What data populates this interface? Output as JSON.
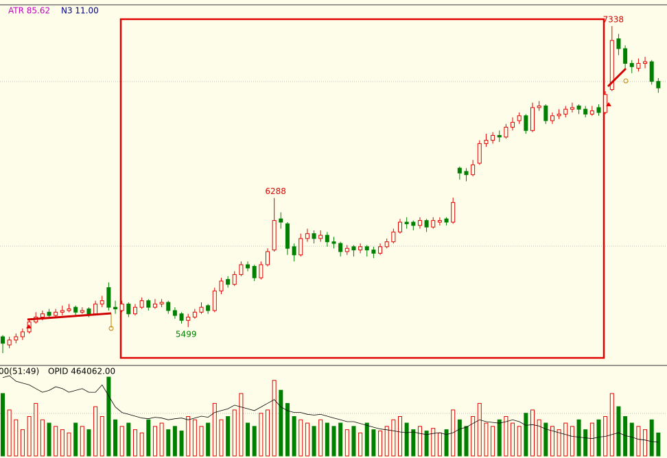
{
  "header": {
    "atr": "ATR 85.62",
    "n3": "N3 11.00"
  },
  "volume_pane": {
    "period": "00(51:49)",
    "opid": "OPID 464062.00"
  },
  "candles": [
    [
      5440,
      5450,
      5340,
      5400
    ],
    [
      5390,
      5440,
      5370,
      5420
    ],
    [
      5420,
      5460,
      5400,
      5440
    ],
    [
      5440,
      5490,
      5420,
      5470
    ],
    [
      5470,
      5550,
      5460,
      5530
    ],
    [
      5530,
      5590,
      5520,
      5560
    ],
    [
      5560,
      5600,
      5540,
      5580
    ],
    [
      5590,
      5610,
      5550,
      5570
    ],
    [
      5570,
      5610,
      5560,
      5590
    ],
    [
      5590,
      5630,
      5570,
      5600
    ],
    [
      5600,
      5640,
      5590,
      5610
    ],
    [
      5620,
      5630,
      5570,
      5590
    ],
    [
      5590,
      5620,
      5580,
      5600
    ],
    [
      5610,
      5620,
      5560,
      5580
    ],
    [
      5580,
      5660,
      5570,
      5640
    ],
    [
      5640,
      5690,
      5620,
      5660
    ],
    [
      5740,
      5772,
      5600,
      5620
    ],
    [
      5620,
      5660,
      5580,
      5610
    ],
    [
      5600,
      5660,
      5590,
      5640
    ],
    [
      5640,
      5650,
      5560,
      5580
    ],
    [
      5580,
      5640,
      5570,
      5620
    ],
    [
      5620,
      5680,
      5610,
      5660
    ],
    [
      5660,
      5670,
      5600,
      5620
    ],
    [
      5620,
      5670,
      5610,
      5640
    ],
    [
      5640,
      5670,
      5620,
      5650
    ],
    [
      5650,
      5660,
      5580,
      5600
    ],
    [
      5600,
      5620,
      5550,
      5570
    ],
    [
      5580,
      5590,
      5520,
      5540
    ],
    [
      5540,
      5580,
      5499,
      5560
    ],
    [
      5560,
      5610,
      5550,
      5590
    ],
    [
      5590,
      5650,
      5580,
      5620
    ],
    [
      5630,
      5640,
      5580,
      5600
    ],
    [
      5600,
      5740,
      5590,
      5720
    ],
    [
      5720,
      5800,
      5700,
      5780
    ],
    [
      5790,
      5810,
      5740,
      5760
    ],
    [
      5760,
      5840,
      5750,
      5820
    ],
    [
      5820,
      5900,
      5810,
      5880
    ],
    [
      5880,
      5900,
      5840,
      5860
    ],
    [
      5870,
      5880,
      5780,
      5800
    ],
    [
      5800,
      5900,
      5790,
      5880
    ],
    [
      5880,
      5980,
      5870,
      5960
    ],
    [
      5970,
      6288,
      5960,
      6150
    ],
    [
      6160,
      6200,
      6100,
      6140
    ],
    [
      6130,
      6140,
      5940,
      5980
    ],
    [
      5990,
      6010,
      5900,
      5940
    ],
    [
      5940,
      6070,
      5930,
      6040
    ],
    [
      6040,
      6100,
      6020,
      6070
    ],
    [
      6070,
      6090,
      6010,
      6040
    ],
    [
      6040,
      6090,
      6020,
      6060
    ],
    [
      6060,
      6080,
      5990,
      6020
    ],
    [
      6020,
      6050,
      5980,
      6010
    ],
    [
      6010,
      6020,
      5930,
      5960
    ],
    [
      5960,
      6000,
      5940,
      5980
    ],
    [
      5990,
      6000,
      5930,
      5970
    ],
    [
      5970,
      6010,
      5950,
      5990
    ],
    [
      5990,
      6000,
      5930,
      5970
    ],
    [
      5970,
      5990,
      5920,
      5950
    ],
    [
      5950,
      6010,
      5940,
      5990
    ],
    [
      5990,
      6040,
      5980,
      6020
    ],
    [
      6020,
      6100,
      6010,
      6080
    ],
    [
      6080,
      6160,
      6070,
      6140
    ],
    [
      6140,
      6170,
      6100,
      6130
    ],
    [
      6140,
      6150,
      6090,
      6120
    ],
    [
      6120,
      6170,
      6100,
      6150
    ],
    [
      6150,
      6160,
      6080,
      6110
    ],
    [
      6110,
      6170,
      6100,
      6150
    ],
    [
      6140,
      6170,
      6120,
      6150
    ],
    [
      6160,
      6170,
      6120,
      6140
    ],
    [
      6140,
      6290,
      6130,
      6260
    ],
    [
      6470,
      6480,
      6400,
      6440
    ],
    [
      6450,
      6470,
      6390,
      6430
    ],
    [
      6430,
      6520,
      6420,
      6490
    ],
    [
      6500,
      6640,
      6490,
      6620
    ],
    [
      6620,
      6680,
      6600,
      6640
    ],
    [
      6640,
      6690,
      6620,
      6670
    ],
    [
      6670,
      6700,
      6630,
      6660
    ],
    [
      6660,
      6740,
      6650,
      6720
    ],
    [
      6720,
      6780,
      6700,
      6750
    ],
    [
      6760,
      6810,
      6740,
      6790
    ],
    [
      6790,
      6800,
      6680,
      6700
    ],
    [
      6700,
      6870,
      6690,
      6840
    ],
    [
      6840,
      6880,
      6820,
      6850
    ],
    [
      6850,
      6860,
      6740,
      6760
    ],
    [
      6760,
      6810,
      6740,
      6790
    ],
    [
      6790,
      6830,
      6770,
      6800
    ],
    [
      6800,
      6850,
      6780,
      6830
    ],
    [
      6830,
      6870,
      6810,
      6840
    ],
    [
      6850,
      6860,
      6800,
      6830
    ],
    [
      6830,
      6850,
      6780,
      6800
    ],
    [
      6800,
      6850,
      6790,
      6820
    ],
    [
      6840,
      6860,
      6790,
      6810
    ],
    [
      6810,
      6940,
      6800,
      6920
    ],
    [
      6950,
      7338,
      6940,
      7250
    ],
    [
      7260,
      7290,
      7160,
      7200
    ],
    [
      7200,
      7220,
      7080,
      7110
    ],
    [
      7110,
      7130,
      7050,
      7090
    ],
    [
      7080,
      7140,
      7060,
      7110
    ],
    [
      7110,
      7150,
      7080,
      7120
    ],
    [
      7120,
      7130,
      6980,
      7000
    ],
    [
      7000,
      7020,
      6930,
      6960
    ]
  ],
  "volumes": [
    95,
    70,
    55,
    40,
    60,
    80,
    55,
    50,
    45,
    40,
    35,
    50,
    45,
    40,
    75,
    60,
    120,
    55,
    45,
    50,
    40,
    35,
    55,
    45,
    50,
    40,
    45,
    38,
    60,
    55,
    45,
    50,
    80,
    55,
    60,
    70,
    95,
    50,
    45,
    65,
    70,
    115,
    100,
    80,
    60,
    55,
    50,
    45,
    55,
    50,
    45,
    50,
    40,
    45,
    35,
    50,
    40,
    38,
    45,
    55,
    60,
    50,
    40,
    45,
    38,
    42,
    35,
    40,
    70,
    55,
    45,
    60,
    80,
    50,
    45,
    55,
    60,
    50,
    45,
    65,
    70,
    55,
    50,
    45,
    40,
    50,
    45,
    55,
    40,
    50,
    55,
    60,
    95,
    75,
    60,
    50,
    45,
    40,
    55,
    35
  ],
  "opid": [
    640000,
    645000,
    630000,
    625000,
    620000,
    610000,
    600000,
    605000,
    615000,
    610000,
    600000,
    605000,
    610000,
    600000,
    600000,
    620000,
    590000,
    560000,
    545000,
    540000,
    535000,
    530000,
    528000,
    532000,
    530000,
    525000,
    528000,
    530000,
    525000,
    530000,
    535000,
    532000,
    545000,
    550000,
    555000,
    565000,
    560000,
    555000,
    550000,
    560000,
    570000,
    580000,
    560000,
    550000,
    545000,
    545000,
    540000,
    538000,
    540000,
    535000,
    530000,
    525000,
    520000,
    520000,
    515000,
    510000,
    505000,
    500000,
    498000,
    495000,
    492000,
    490000,
    492000,
    488000,
    485000,
    488000,
    490000,
    485000,
    490000,
    500000,
    505000,
    515000,
    525000,
    520000,
    518000,
    516000,
    520000,
    525000,
    520000,
    510000,
    512000,
    508000,
    500000,
    495000,
    490000,
    485000,
    480000,
    478000,
    476000,
    474000,
    478000,
    480000,
    485000,
    490000,
    482000,
    478000,
    472000,
    470000,
    466000,
    464062
  ]
}
